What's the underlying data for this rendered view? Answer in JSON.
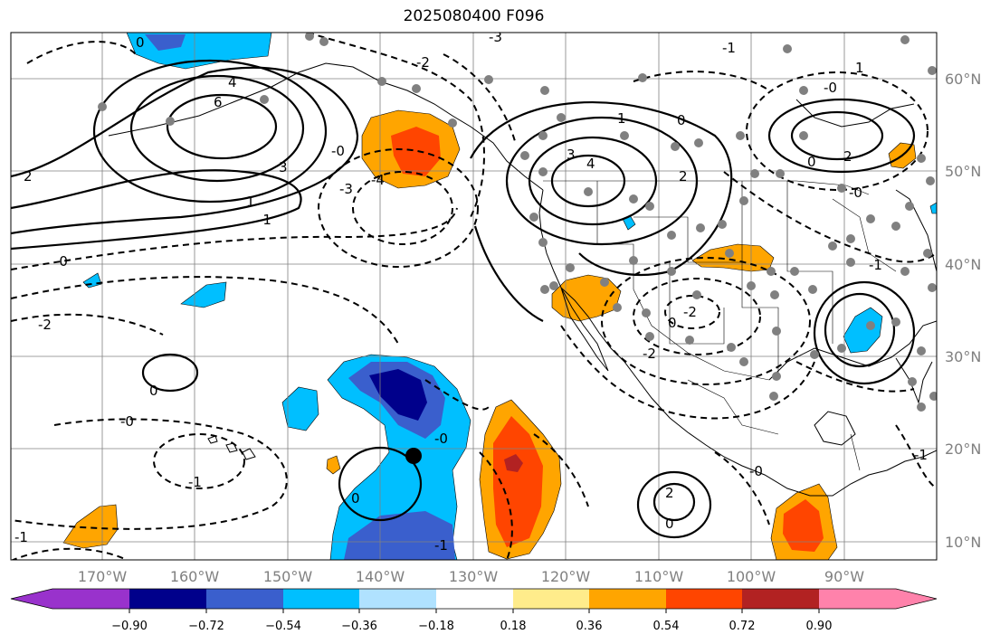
{
  "title": "2025080400 F096",
  "map": {
    "lat_labels": [
      "60°N",
      "50°N",
      "40°N",
      "30°N",
      "20°N",
      "10°N"
    ],
    "lon_labels": [
      "170°W",
      "160°W",
      "150°W",
      "140°W",
      "130°W",
      "120°W",
      "110°W",
      "100°W",
      "90°W"
    ],
    "contour_labels": [
      "0",
      "4",
      "6",
      "3",
      "2",
      "1",
      "-0",
      "-1",
      "-2",
      "-3",
      "-4",
      "-0",
      "0",
      "-1",
      "-2",
      "-3",
      "3",
      "4",
      "1",
      "0",
      "2",
      "1",
      "-0",
      "-1",
      "2",
      "-0",
      "0",
      "-1",
      "-2",
      "0",
      "-2",
      "-0",
      "2",
      "-0",
      "-1",
      "0",
      "-0",
      "0",
      "-1",
      "-1"
    ],
    "colors": {
      "contour": "#000000",
      "coast": "#000000",
      "grid": "#808080",
      "station": "#808080"
    }
  },
  "colorbar": {
    "tick_labels": [
      "−0.90",
      "−0.72",
      "−0.54",
      "−0.36",
      "−0.18",
      "0.18",
      "0.36",
      "0.54",
      "0.72",
      "0.90"
    ],
    "colors": [
      "#9932cc",
      "#00008b",
      "#3a5fcd",
      "#00bfff",
      "#b0e2ff",
      "#ffffff",
      "#ffec8b",
      "#ffa500",
      "#ff4500",
      "#b22222",
      "#ff82ab"
    ]
  }
}
